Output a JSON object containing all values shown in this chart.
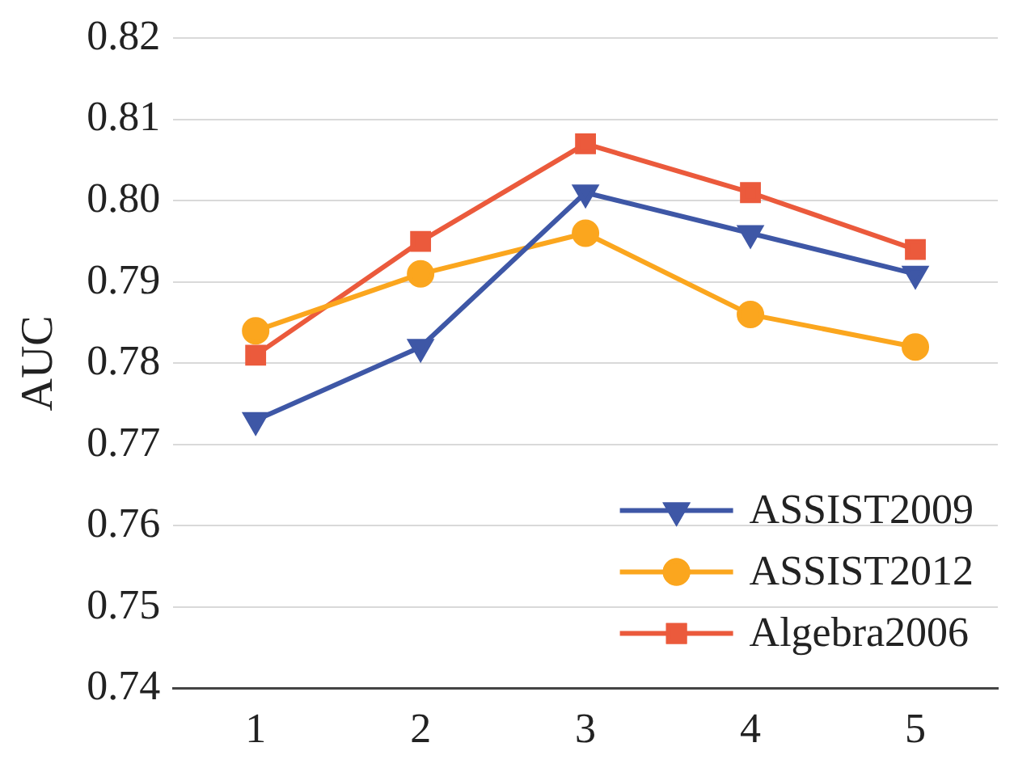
{
  "chart_data": {
    "type": "line",
    "ylabel": "AUC",
    "categories": [
      "1",
      "2",
      "3",
      "4",
      "5"
    ],
    "ylim": [
      0.74,
      0.82
    ],
    "yticks": [
      0.74,
      0.75,
      0.76,
      0.77,
      0.78,
      0.79,
      {
        "value": 0.8,
        "label": "0.80"
      },
      0.81,
      0.82
    ],
    "grid": "y",
    "legend": "bottom right",
    "line_style": "solid",
    "series": [
      {
        "name": "ASSIST2009",
        "color": "#3e57a6",
        "marker": "triangle-down",
        "values": [
          0.773,
          0.782,
          0.801,
          0.796,
          0.791
        ]
      },
      {
        "name": "ASSIST2012",
        "color": "#fba61e",
        "marker": "circle",
        "values": [
          0.784,
          0.791,
          0.796,
          0.786,
          0.782
        ]
      },
      {
        "name": "Algebra2006",
        "color": "#eb5a3c",
        "marker": "square",
        "values": [
          0.781,
          0.795,
          0.807,
          0.801,
          0.794
        ]
      }
    ]
  }
}
